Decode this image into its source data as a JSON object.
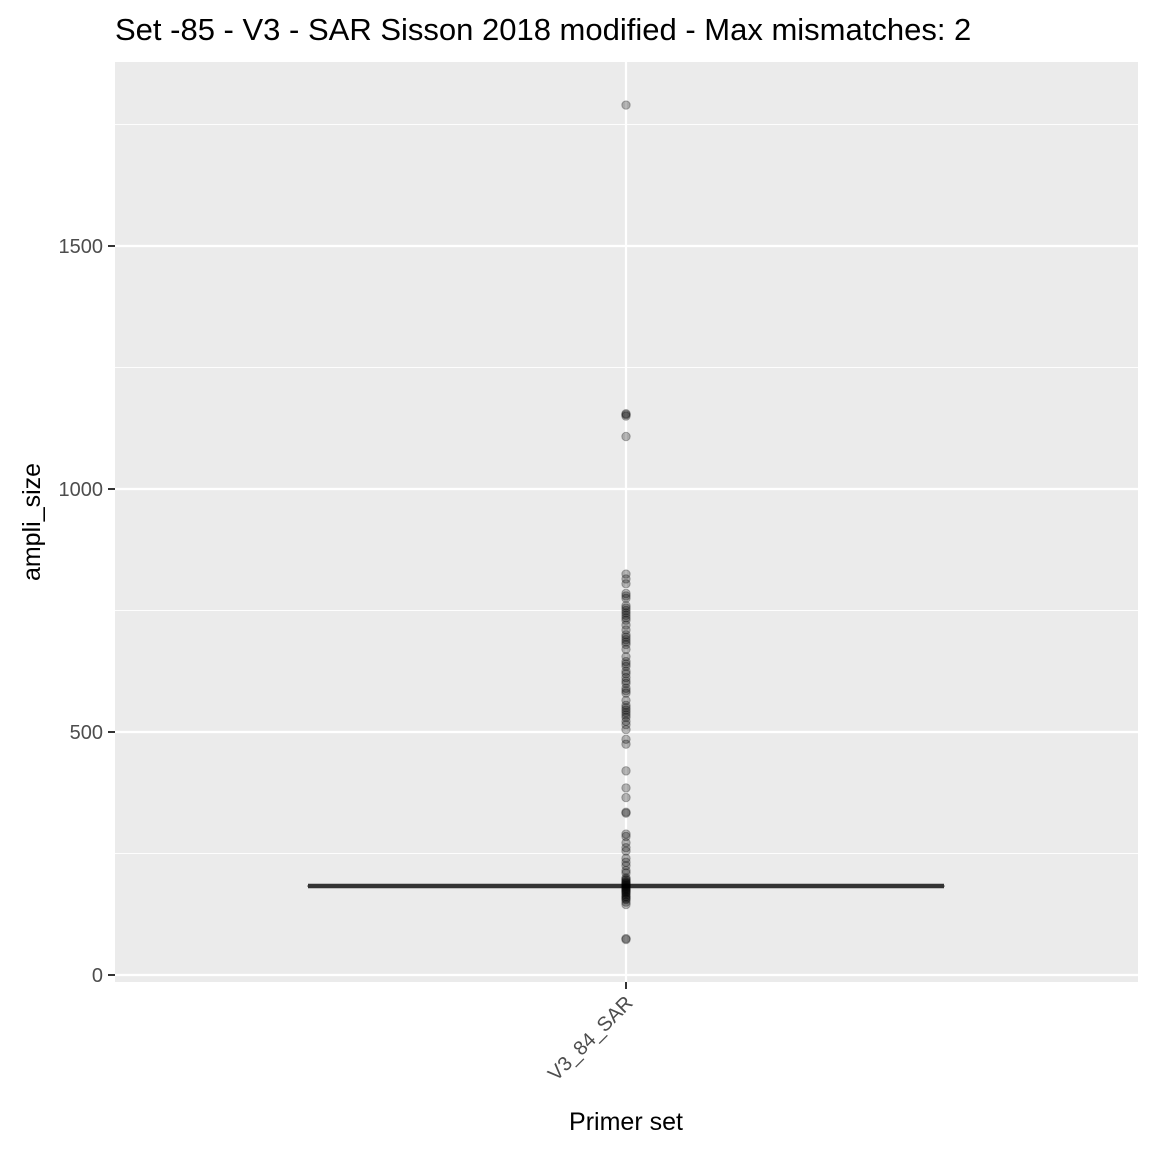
{
  "chart_data": {
    "type": "box",
    "title": "Set -85 - V3 - SAR Sisson 2018 modified - Max mismatches: 2",
    "xlabel": "Primer set",
    "ylabel": "ampli_size",
    "categories": [
      "V3_84_SAR"
    ],
    "y_ticks": [
      0,
      500,
      1000,
      1500
    ],
    "y_tick_labels": [
      "0",
      "500",
      "1000",
      "1500"
    ],
    "ylim": [
      -15,
      1800
    ],
    "grid": true,
    "box": {
      "category": "V3_84_SAR",
      "median": 183,
      "q1": 183,
      "q3": 183
    },
    "points": [
      1790,
      1155,
      1153,
      1150,
      1108,
      825,
      815,
      805,
      785,
      780,
      775,
      760,
      755,
      750,
      745,
      740,
      735,
      730,
      720,
      710,
      700,
      695,
      690,
      685,
      680,
      670,
      655,
      645,
      640,
      635,
      625,
      620,
      612,
      605,
      600,
      590,
      585,
      580,
      565,
      555,
      550,
      545,
      540,
      535,
      530,
      522,
      515,
      505,
      485,
      475,
      420,
      385,
      365,
      335,
      333,
      290,
      285,
      272,
      262,
      255,
      240,
      232,
      225,
      215,
      210,
      200,
      197,
      195,
      192,
      190,
      188,
      186,
      184,
      182,
      180,
      178,
      176,
      174,
      172,
      170,
      168,
      165,
      162,
      160,
      157,
      155,
      150,
      145,
      75,
      73
    ],
    "colors": {
      "panel": "#ebebeb",
      "grid_major": "#ffffff",
      "box_line": "#333333",
      "point": "#000000",
      "tick": "#333333"
    }
  }
}
